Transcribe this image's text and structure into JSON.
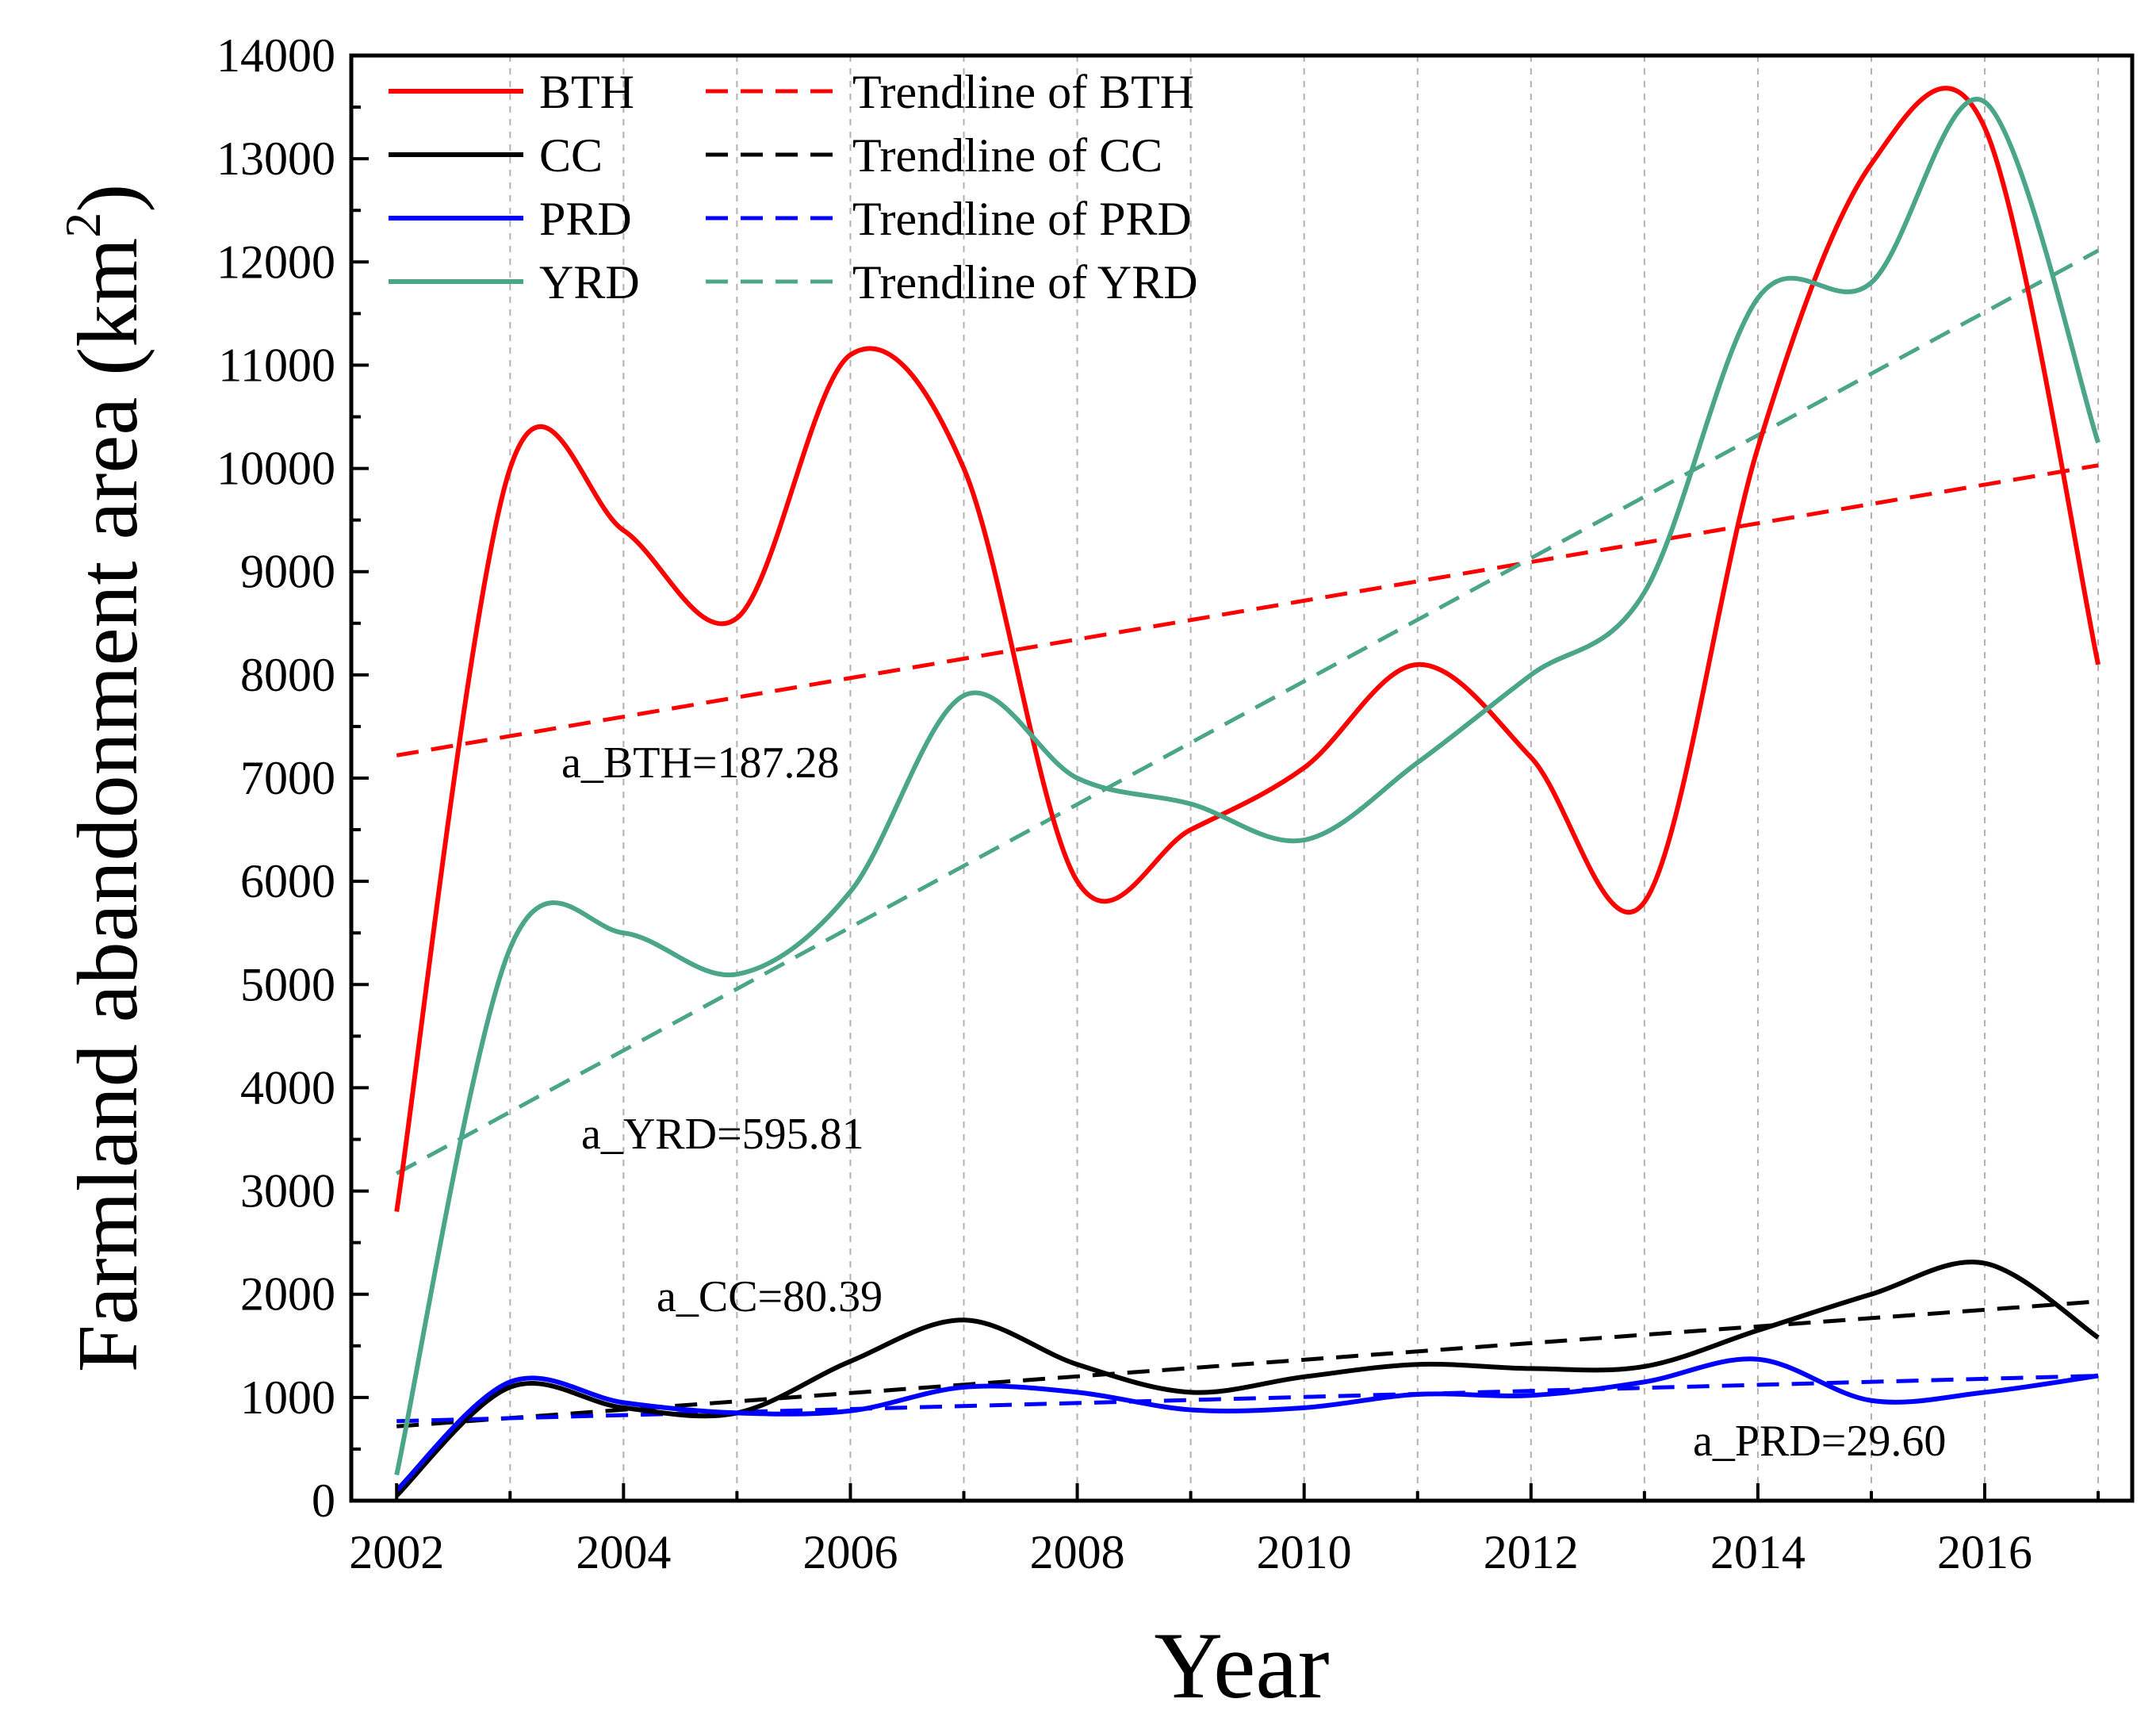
{
  "chart_data": {
    "type": "line",
    "xlabel": "Year",
    "ylabel": "Farmland abandonment area (km",
    "ylabel_sup": "2",
    "ylabel_close": ")",
    "xlim": [
      2001.6,
      2017.3
    ],
    "ylim": [
      0,
      14000
    ],
    "x_ticks": [
      "2002",
      "2004",
      "2006",
      "2008",
      "2010",
      "2012",
      "2014",
      "2016"
    ],
    "y_ticks": [
      "0",
      "1000",
      "2000",
      "3000",
      "4000",
      "5000",
      "6000",
      "7000",
      "8000",
      "9000",
      "10000",
      "11000",
      "12000",
      "13000",
      "14000"
    ],
    "grid": "vertical dotted lines at each year",
    "legend_position": "top-left",
    "x": [
      2002,
      2003,
      2004,
      2005,
      2006,
      2007,
      2008,
      2009,
      2010,
      2011,
      2012,
      2013,
      2014,
      2015,
      2016,
      2017
    ],
    "series": [
      {
        "name": "BTH",
        "color": "#ff0000",
        "style": "solid",
        "values": [
          2800,
          10000,
          9400,
          8550,
          11100,
          10000,
          6000,
          6500,
          7100,
          8100,
          7200,
          5800,
          10200,
          12950,
          13300,
          8100
        ]
      },
      {
        "name": "CC",
        "color": "#000000",
        "style": "solid",
        "values": [
          50,
          1100,
          900,
          850,
          1350,
          1750,
          1320,
          1050,
          1200,
          1320,
          1280,
          1300,
          1650,
          2000,
          2300,
          1580
        ]
      },
      {
        "name": "PRD",
        "color": "#0000ff",
        "style": "solid",
        "values": [
          100,
          1150,
          950,
          850,
          870,
          1100,
          1050,
          880,
          900,
          1030,
          1020,
          1150,
          1370,
          970,
          1050,
          1210
        ]
      },
      {
        "name": "YRD",
        "color": "#4aa589",
        "style": "solid",
        "values": [
          250,
          5350,
          5500,
          5100,
          5900,
          7800,
          7000,
          6750,
          6400,
          7150,
          8000,
          8800,
          11650,
          11800,
          13550,
          10250
        ]
      }
    ],
    "trendlines": [
      {
        "name": "Trendline of BTH",
        "color": "#ff0000",
        "style": "dashed",
        "start": 7220,
        "end": 10030
      },
      {
        "name": "Trendline of CC",
        "color": "#000000",
        "style": "dashed",
        "start": 720,
        "end": 1930
      },
      {
        "name": "Trendline of PRD",
        "color": "#0000ff",
        "style": "dashed",
        "start": 770,
        "end": 1210
      },
      {
        "name": "Trendline of YRD",
        "color": "#4aa589",
        "style": "dashed",
        "start": 3170,
        "end": 12110
      }
    ],
    "annotations": [
      "a_BTH=187.28",
      "a_YRD=595.81",
      "a_CC=80.39",
      "a_PRD=29.60"
    ]
  }
}
